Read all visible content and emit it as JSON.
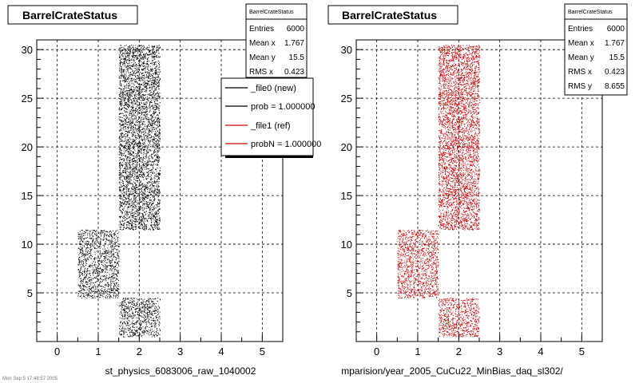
{
  "footer_text": "Mon Sep  5 17:48:57 2005",
  "colors": {
    "ref_points": "#cc0000",
    "new_points": "#000000",
    "grid": "#000000"
  },
  "chart_data": [
    {
      "type": "scatter",
      "title": "BarrelCrateStatus",
      "xlabel": "st_physics_6083006_raw_1040002",
      "ylabel": "",
      "xlim": [
        -0.5,
        5.5
      ],
      "ylim": [
        0,
        31
      ],
      "xticks": [
        0,
        1,
        2,
        3,
        4,
        5
      ],
      "yticks": [
        5,
        10,
        15,
        20,
        25,
        30
      ],
      "point_color": "#000000",
      "grid": true,
      "clusters": [
        {
          "x": [
            0.5,
            1.5
          ],
          "y": [
            4.5,
            11.5
          ],
          "n": 1200
        },
        {
          "x": [
            1.5,
            2.5
          ],
          "y": [
            0.5,
            4.5
          ],
          "n": 700
        },
        {
          "x": [
            1.5,
            2.5
          ],
          "y": [
            11.5,
            30.5
          ],
          "n": 4100
        }
      ],
      "stats": {
        "header": "BarrelCrateStatus",
        "rows": [
          {
            "label": "Entries",
            "value": "6000"
          },
          {
            "label": "Mean x",
            "value": "1.767"
          },
          {
            "label": "Mean y",
            "value": "15.5"
          },
          {
            "label": "RMS x",
            "value": "0.423"
          }
        ]
      },
      "legend": {
        "placement": "top-right",
        "entries": [
          {
            "label": "_file0 (new)",
            "color": "#000000"
          },
          {
            "label": "prob = 1.000000",
            "color": "#000000"
          },
          {
            "label": "_file1 (ref)",
            "color": "#cc0000"
          },
          {
            "label": "probN = 1.000000",
            "color": "#cc0000"
          }
        ]
      }
    },
    {
      "type": "scatter",
      "title": "BarrelCrateStatus",
      "xlabel": "mparision/year_2005_CuCu22_MinBias_daq_sl302/",
      "ylabel": "",
      "xlim": [
        -0.5,
        5.5
      ],
      "ylim": [
        0,
        31
      ],
      "xticks": [
        0,
        1,
        2,
        3,
        4,
        5
      ],
      "yticks": [
        5,
        10,
        15,
        20,
        25,
        30
      ],
      "point_color": "#cc0000",
      "grid": true,
      "clusters": [
        {
          "x": [
            0.5,
            1.5
          ],
          "y": [
            4.5,
            11.5
          ],
          "n": 1200
        },
        {
          "x": [
            1.5,
            2.5
          ],
          "y": [
            0.5,
            4.5
          ],
          "n": 700
        },
        {
          "x": [
            1.5,
            2.5
          ],
          "y": [
            11.5,
            30.5
          ],
          "n": 4100
        }
      ],
      "stats": {
        "header": "BarrelCrateStatus",
        "rows": [
          {
            "label": "Entries",
            "value": "6000"
          },
          {
            "label": "Mean x",
            "value": "1.767"
          },
          {
            "label": "Mean y",
            "value": "15.5"
          },
          {
            "label": "RMS x",
            "value": "0.423"
          },
          {
            "label": "RMS y",
            "value": "8.655"
          }
        ]
      }
    }
  ]
}
